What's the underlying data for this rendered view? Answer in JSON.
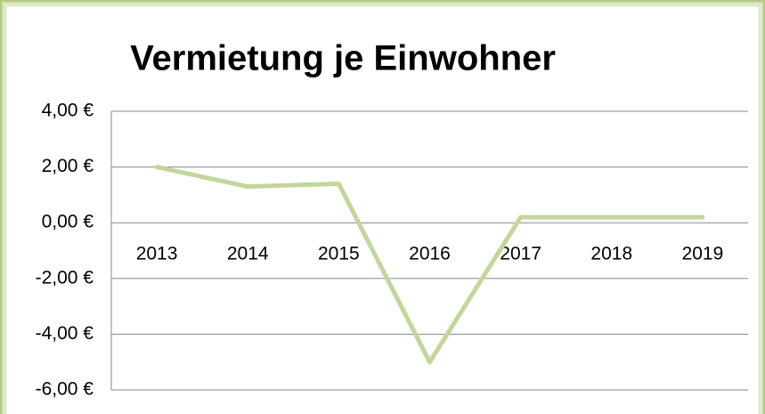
{
  "chart_data": {
    "type": "line",
    "title": "Vermietung je Einwohner",
    "categories": [
      "2013",
      "2014",
      "2015",
      "2016",
      "2017",
      "2018",
      "2019"
    ],
    "series": [
      {
        "name": "Vermietung je Einwohner",
        "color": "#c3d69b",
        "values": [
          2.0,
          1.3,
          1.4,
          -5.0,
          0.2,
          0.2,
          0.2
        ]
      }
    ],
    "ylim": [
      -6,
      4
    ],
    "yticks": [
      {
        "value": -6,
        "label": "-6,00 €"
      },
      {
        "value": -4,
        "label": "-4,00 €"
      },
      {
        "value": -2,
        "label": "-2,00 €"
      },
      {
        "value": 0,
        "label": "0,00 €"
      },
      {
        "value": 2,
        "label": "2,00 €"
      },
      {
        "value": 4,
        "label": "4,00 €"
      }
    ],
    "grid": true
  }
}
